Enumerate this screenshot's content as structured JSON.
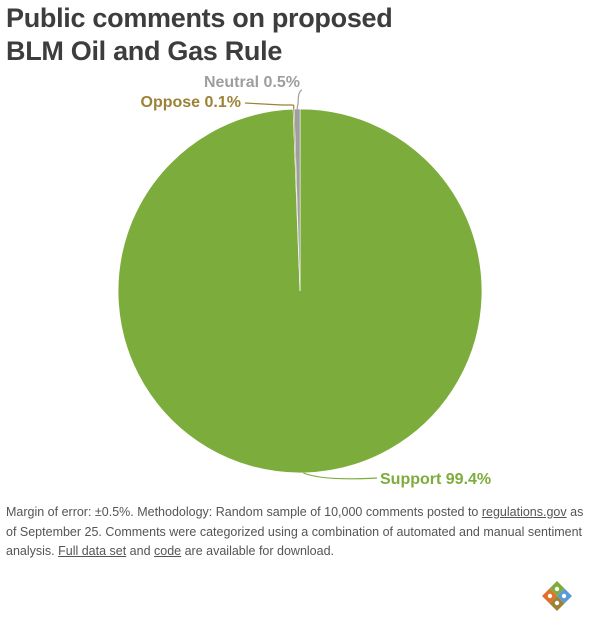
{
  "title": {
    "line1": "Public comments on proposed",
    "line2": "BLM Oil and Gas Rule"
  },
  "chart_data": {
    "type": "pie",
    "slices": [
      {
        "label": "Support",
        "value": 99.4,
        "display": "Support 99.4%",
        "color": "#7cad3c"
      },
      {
        "label": "Oppose",
        "value": 0.1,
        "display": "Oppose 0.1%",
        "color": "#9b8236"
      },
      {
        "label": "Neutral",
        "value": 0.5,
        "display": "Neutral 0.5%",
        "color": "#9e9e9e"
      }
    ],
    "start": "top, clockwise"
  },
  "footnote": {
    "part1": "Margin of error: ±0.5%. Methodology: Random sample of 10,000 comments posted to ",
    "link_regulations": "regulations.gov",
    "part2": " as of September 25. Comments were categorized using a combination of automated and manual sentiment analysis. ",
    "link_dataset": "Full data set",
    "part3": " and ",
    "link_code": "code",
    "part4": " are available for download."
  },
  "colors": {
    "title": "#3d3d3d",
    "text": "#555555"
  },
  "logo": {
    "icon": "diamond-logo-icon"
  }
}
